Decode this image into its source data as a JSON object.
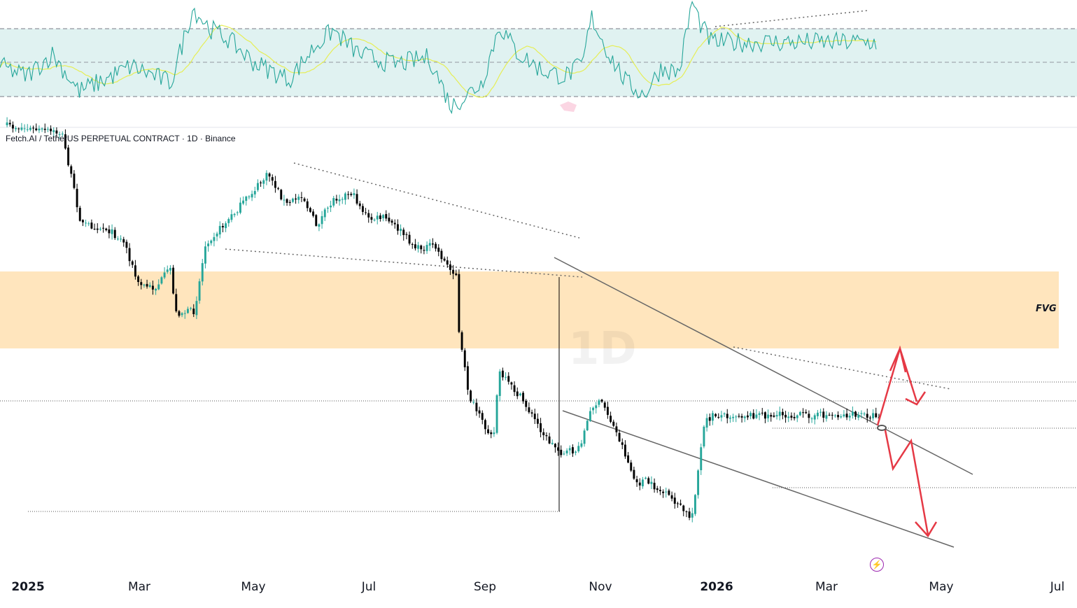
{
  "chart_data": {
    "type": "candlestick",
    "symbol_title": "Fetch.AI / TetherUS PERPETUAL CONTRACT · 1D · Binance",
    "interval_watermark": "1D",
    "x_axis_ticks": [
      {
        "label": "2025",
        "bold": true
      },
      {
        "label": "Mar",
        "bold": false
      },
      {
        "label": "May",
        "bold": false
      },
      {
        "label": "Jul",
        "bold": false
      },
      {
        "label": "Sep",
        "bold": false
      },
      {
        "label": "Nov",
        "bold": false
      },
      {
        "label": "2026",
        "bold": true
      },
      {
        "label": "Mar",
        "bold": false
      },
      {
        "label": "May",
        "bold": false
      },
      {
        "label": "Jul",
        "bold": false
      }
    ],
    "zone_label": "FVG",
    "colors": {
      "up": "#26a69a",
      "down": "#000000",
      "fvg_zone": "#ffe0b2",
      "rsi_band": "#e0f2f1",
      "rsi_line": "#26a69a",
      "rsi_ma": "#e6ee55",
      "projection_arrows": "#e53945",
      "trendline": "#666666"
    },
    "price_path": [
      [
        0.0,
        0.0
      ],
      [
        0.063,
        0.035
      ],
      [
        0.085,
        0.47
      ],
      [
        0.115,
        0.495
      ],
      [
        0.135,
        0.56
      ],
      [
        0.15,
        0.76
      ],
      [
        0.17,
        0.78
      ],
      [
        0.188,
        0.68
      ],
      [
        0.193,
        0.9
      ],
      [
        0.215,
        0.89
      ],
      [
        0.228,
        0.56
      ],
      [
        0.25,
        0.47
      ],
      [
        0.285,
        0.3
      ],
      [
        0.3,
        0.23
      ],
      [
        0.32,
        0.38
      ],
      [
        0.338,
        0.33
      ],
      [
        0.355,
        0.48
      ],
      [
        0.375,
        0.35
      ],
      [
        0.395,
        0.32
      ],
      [
        0.415,
        0.45
      ],
      [
        0.432,
        0.44
      ],
      [
        0.45,
        0.5
      ],
      [
        0.47,
        0.59
      ],
      [
        0.49,
        0.575
      ],
      [
        0.508,
        0.69
      ],
      [
        0.515,
        0.7
      ],
      [
        0.516,
        0.935
      ],
      [
        0.53,
        1.3
      ],
      [
        0.548,
        1.45
      ],
      [
        0.56,
        1.48
      ],
      [
        0.563,
        1.18
      ],
      [
        0.59,
        1.31
      ],
      [
        0.62,
        1.51
      ],
      [
        0.636,
        1.57
      ],
      [
        0.655,
        1.56
      ],
      [
        0.672,
        1.34
      ],
      [
        0.683,
        1.33
      ],
      [
        0.705,
        1.53
      ],
      [
        0.722,
        1.73
      ],
      [
        0.73,
        1.7
      ],
      [
        0.765,
        1.8
      ],
      [
        0.785,
        1.89
      ],
      [
        0.8,
        1.43
      ],
      [
        0.81,
        1.39
      ]
    ],
    "rsi": {
      "upper_band": 70,
      "mid_line": 50,
      "lower_band": 30,
      "path": [
        [
          0.0,
          48
        ],
        [
          0.03,
          42
        ],
        [
          0.06,
          55
        ],
        [
          0.09,
          33
        ],
        [
          0.12,
          40
        ],
        [
          0.15,
          48
        ],
        [
          0.195,
          38
        ],
        [
          0.22,
          82
        ],
        [
          0.24,
          70
        ],
        [
          0.26,
          64
        ],
        [
          0.29,
          50
        ],
        [
          0.33,
          40
        ],
        [
          0.36,
          60
        ],
        [
          0.38,
          69
        ],
        [
          0.41,
          55
        ],
        [
          0.45,
          49
        ],
        [
          0.49,
          53
        ],
        [
          0.515,
          24
        ],
        [
          0.55,
          38
        ],
        [
          0.57,
          72
        ],
        [
          0.59,
          56
        ],
        [
          0.62,
          45
        ],
        [
          0.645,
          42
        ],
        [
          0.665,
          49
        ],
        [
          0.675,
          77
        ],
        [
          0.695,
          55
        ],
        [
          0.715,
          38
        ],
        [
          0.735,
          31
        ],
        [
          0.755,
          47
        ],
        [
          0.775,
          44
        ],
        [
          0.79,
          86
        ],
        [
          0.8,
          72
        ],
        [
          0.812,
          62
        ]
      ]
    }
  }
}
